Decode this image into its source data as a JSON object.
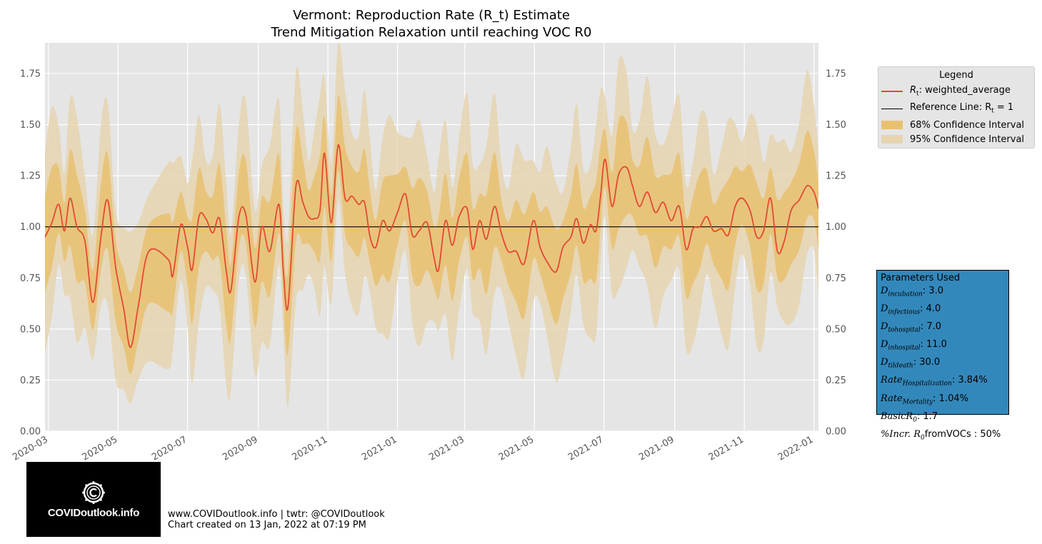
{
  "chart_data": {
    "type": "line",
    "title": "Vermont: Reproduction Rate (R_t) Estimate",
    "subtitle": "Trend Mitigation Relaxation until reaching VOC R0",
    "xlabel": "",
    "ylabel": "",
    "ylim": [
      0,
      1.9
    ],
    "x_range": [
      "2020-02-27",
      "2022-01-05"
    ],
    "y_ticks": [
      "0.00",
      "0.25",
      "0.50",
      "0.75",
      "1.00",
      "1.25",
      "1.50",
      "1.75"
    ],
    "x_ticks": [
      "2020-03",
      "2020-05",
      "2020-07",
      "2020-09",
      "2020-11",
      "2021-01",
      "2021-03",
      "2021-05",
      "2021-07",
      "2021-09",
      "2021-11",
      "2022-01"
    ],
    "grid": true,
    "reference_line": 1.0,
    "series": [
      {
        "name": "R_t: weighted_average",
        "color": "#e24a33",
        "points": [
          [
            "2020-02-27",
            0.95
          ],
          [
            "2020-03-04",
            1.02
          ],
          [
            "2020-03-10",
            1.11
          ],
          [
            "2020-03-15",
            0.98
          ],
          [
            "2020-03-20",
            1.14
          ],
          [
            "2020-03-26",
            1.0
          ],
          [
            "2020-04-02",
            0.93
          ],
          [
            "2020-04-09",
            0.63
          ],
          [
            "2020-04-16",
            0.95
          ],
          [
            "2020-04-22",
            1.13
          ],
          [
            "2020-04-29",
            0.8
          ],
          [
            "2020-05-06",
            0.6
          ],
          [
            "2020-05-12",
            0.41
          ],
          [
            "2020-05-19",
            0.62
          ],
          [
            "2020-05-28",
            0.88
          ],
          [
            "2020-06-14",
            0.84
          ],
          [
            "2020-06-18",
            0.76
          ],
          [
            "2020-06-25",
            1.01
          ],
          [
            "2020-07-01",
            0.9
          ],
          [
            "2020-07-05",
            0.79
          ],
          [
            "2020-07-11",
            1.05
          ],
          [
            "2020-07-17",
            1.04
          ],
          [
            "2020-07-23",
            0.97
          ],
          [
            "2020-07-29",
            1.04
          ],
          [
            "2020-08-04",
            0.78
          ],
          [
            "2020-08-08",
            0.69
          ],
          [
            "2020-08-15",
            1.05
          ],
          [
            "2020-08-21",
            1.06
          ],
          [
            "2020-08-29",
            0.73
          ],
          [
            "2020-09-04",
            1.0
          ],
          [
            "2020-09-11",
            0.88
          ],
          [
            "2020-09-19",
            1.11
          ],
          [
            "2020-09-23",
            0.78
          ],
          [
            "2020-09-27",
            0.61
          ],
          [
            "2020-10-04",
            1.2
          ],
          [
            "2020-10-10",
            1.12
          ],
          [
            "2020-10-15",
            1.05
          ],
          [
            "2020-10-20",
            1.04
          ],
          [
            "2020-10-25",
            1.08
          ],
          [
            "2020-10-29",
            1.36
          ],
          [
            "2020-11-04",
            1.02
          ],
          [
            "2020-11-10",
            1.4
          ],
          [
            "2020-11-16",
            1.14
          ],
          [
            "2020-11-22",
            1.15
          ],
          [
            "2020-11-28",
            1.11
          ],
          [
            "2020-12-03",
            1.12
          ],
          [
            "2020-12-08",
            0.95
          ],
          [
            "2020-12-13",
            0.9
          ],
          [
            "2020-12-19",
            1.03
          ],
          [
            "2020-12-25",
            0.98
          ],
          [
            "2021-01-01",
            1.07
          ],
          [
            "2021-01-08",
            1.16
          ],
          [
            "2021-01-14",
            0.96
          ],
          [
            "2021-01-20",
            0.98
          ],
          [
            "2021-01-27",
            1.02
          ],
          [
            "2021-02-02",
            0.85
          ],
          [
            "2021-02-06",
            0.79
          ],
          [
            "2021-02-12",
            1.03
          ],
          [
            "2021-02-18",
            0.91
          ],
          [
            "2021-02-24",
            1.05
          ],
          [
            "2021-03-03",
            1.09
          ],
          [
            "2021-03-08",
            0.89
          ],
          [
            "2021-03-14",
            1.03
          ],
          [
            "2021-03-20",
            0.94
          ],
          [
            "2021-03-27",
            1.1
          ],
          [
            "2021-04-02",
            0.97
          ],
          [
            "2021-04-08",
            0.88
          ],
          [
            "2021-04-15",
            0.88
          ],
          [
            "2021-04-22",
            0.82
          ],
          [
            "2021-04-30",
            1.03
          ],
          [
            "2021-05-06",
            0.9
          ],
          [
            "2021-05-12",
            0.83
          ],
          [
            "2021-05-20",
            0.78
          ],
          [
            "2021-05-26",
            0.9
          ],
          [
            "2021-06-02",
            0.95
          ],
          [
            "2021-06-07",
            1.04
          ],
          [
            "2021-06-13",
            0.92
          ],
          [
            "2021-06-19",
            1.01
          ],
          [
            "2021-06-24",
            0.98
          ],
          [
            "2021-06-28",
            1.15
          ],
          [
            "2021-07-02",
            1.33
          ],
          [
            "2021-07-08",
            1.1
          ],
          [
            "2021-07-14",
            1.26
          ],
          [
            "2021-07-21",
            1.29
          ],
          [
            "2021-07-26",
            1.2
          ],
          [
            "2021-08-01",
            1.1
          ],
          [
            "2021-08-08",
            1.17
          ],
          [
            "2021-08-15",
            1.07
          ],
          [
            "2021-08-22",
            1.12
          ],
          [
            "2021-08-29",
            1.03
          ],
          [
            "2021-09-05",
            1.1
          ],
          [
            "2021-09-11",
            0.89
          ],
          [
            "2021-09-17",
            0.99
          ],
          [
            "2021-09-23",
            1.0
          ],
          [
            "2021-09-29",
            1.05
          ],
          [
            "2021-10-05",
            0.98
          ],
          [
            "2021-10-12",
            0.99
          ],
          [
            "2021-10-18",
            0.96
          ],
          [
            "2021-10-24",
            1.1
          ],
          [
            "2021-10-30",
            1.14
          ],
          [
            "2021-11-06",
            1.08
          ],
          [
            "2021-11-12",
            0.95
          ],
          [
            "2021-11-18",
            0.98
          ],
          [
            "2021-11-24",
            1.14
          ],
          [
            "2021-11-30",
            0.88
          ],
          [
            "2021-12-06",
            0.93
          ],
          [
            "2021-12-12",
            1.08
          ],
          [
            "2021-12-19",
            1.13
          ],
          [
            "2021-12-26",
            1.2
          ],
          [
            "2022-01-01",
            1.17
          ],
          [
            "2022-01-05",
            1.09
          ]
        ]
      }
    ],
    "legend": {
      "title": "Legend",
      "placement": "outside-right",
      "entries": [
        {
          "label_base": "R",
          "label_sub": "t",
          "label_rest": ": weighted_average",
          "kind": "line",
          "color": "#e24a33"
        },
        {
          "label_base": "Reference Line: R",
          "label_sub": "t",
          "label_rest": " = 1",
          "kind": "line",
          "color": "#000000"
        },
        {
          "label": "68% Confidence Interval",
          "kind": "patch",
          "color": "#e8c170"
        },
        {
          "label": "95% Confidence Interval",
          "kind": "patch",
          "color": "#e6d5b0"
        }
      ]
    }
  },
  "parameters": {
    "title": "Parameters Used",
    "rows": [
      {
        "base": "D",
        "sub": "incubation",
        "value": ": 3.0"
      },
      {
        "base": "D",
        "sub": "infectious",
        "value": ": 4.0"
      },
      {
        "base": "D",
        "sub": "tohospital",
        "value": ": 7.0"
      },
      {
        "base": "D",
        "sub": "inhospital",
        "value": ": 11.0"
      },
      {
        "base": "D",
        "sub": "tildeath",
        "value": ": 30.0"
      },
      {
        "base": "Rate",
        "sub": "Hospitalization",
        "value": ": 3.84%"
      },
      {
        "base": "Rate",
        "sub": "Mortality",
        "value": ": 1.04%"
      },
      {
        "base": "BasicR",
        "sub": "0",
        "value": ": 1.7"
      },
      {
        "base": "%Incr. R",
        "sub": "0",
        "value": "fromVOCs : 50%"
      }
    ]
  },
  "logo": {
    "text": "COVIDoutlook.info"
  },
  "footer": {
    "line1": "www.COVIDoutlook.info | twtr: @COVIDoutlook",
    "line2": "Chart created on 13 Jan, 2022 at 07:19 PM"
  },
  "colors": {
    "axes_bg": "#e5e5e5",
    "grid": "#ffffff",
    "band68": "#e8c170",
    "band95": "#e6d5b0",
    "line": "#e24a33",
    "params_bg": "#3388bb"
  }
}
